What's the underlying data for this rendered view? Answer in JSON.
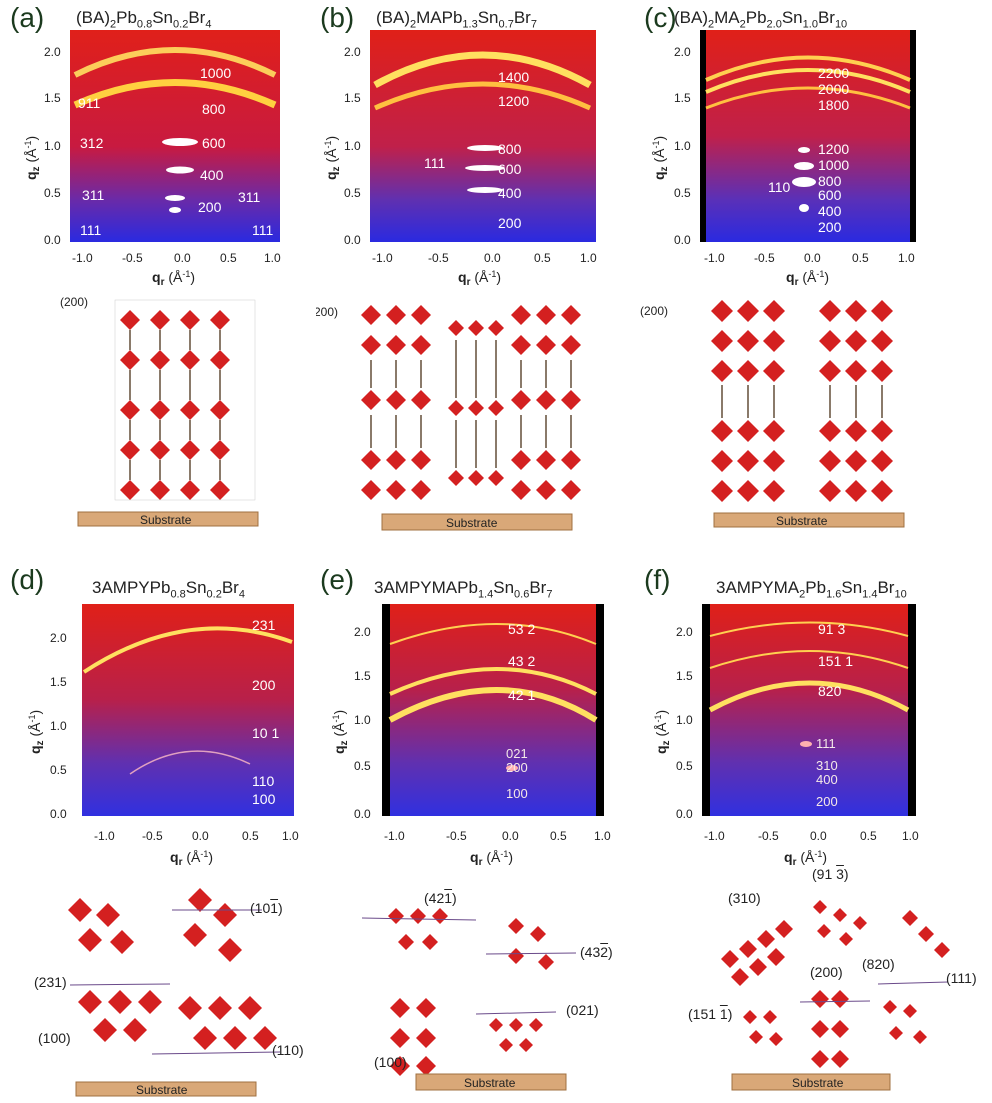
{
  "panels": [
    {
      "label": "(a)",
      "title_html": "(BA)<sub>2</sub>Pb<sub>0.8</sub>Sn<sub>0.2</sub>Br<sub>4</sub>",
      "xticks": [
        "-1.0",
        "-0.5",
        "0.0",
        "0.5",
        "1.0"
      ],
      "yticks": [
        "0.0",
        "0.5",
        "1.0",
        "1.5",
        "2.0"
      ],
      "peaks": [
        "1000",
        "911",
        "800",
        "312",
        "600",
        "400",
        "311",
        "200",
        "311",
        "111",
        "111"
      ],
      "plane": "(200)",
      "substrate": "Substrate"
    },
    {
      "label": "(b)",
      "title_html": "(BA)<sub>2</sub>MAPb<sub>1.3</sub>Sn<sub>0.7</sub>Br<sub>7</sub>",
      "xticks": [
        "-1.0",
        "-0.5",
        "0.0",
        "0.5",
        "1.0"
      ],
      "yticks": [
        "0.0",
        "0.5",
        "1.0",
        "1.5",
        "2.0"
      ],
      "peaks": [
        "1400",
        "1200",
        "800",
        "111",
        "600",
        "400",
        "200"
      ],
      "plane": "(200)",
      "substrate": "Substrate"
    },
    {
      "label": "(c)",
      "title_html": "(BA)<sub>2</sub>MA<sub>2</sub>Pb<sub>2.0</sub>Sn<sub>1.0</sub>Br<sub>10</sub>",
      "xticks": [
        "-1.0",
        "-0.5",
        "0.0",
        "0.5",
        "1.0"
      ],
      "yticks": [
        "0.0",
        "0.5",
        "1.0",
        "1.5",
        "2.0"
      ],
      "peaks": [
        "2200",
        "2000",
        "1800",
        "1200",
        "1000",
        "110",
        "800",
        "600",
        "400",
        "200"
      ],
      "plane": "(200)",
      "substrate": "Substrate"
    },
    {
      "label": "(d)",
      "title_html": "3AMPYPb<sub>0.8</sub>Sn<sub>0.2</sub>Br<sub>4</sub>",
      "xticks": [
        "-1.0",
        "-0.5",
        "0.0",
        "0.5",
        "1.0"
      ],
      "yticks": [
        "0.0",
        "0.5",
        "1.0",
        "1.5",
        "2.0"
      ],
      "peaks": [
        "231",
        "200",
        "10 1",
        "110",
        "100"
      ],
      "planes": [
        "(10 1)",
        "(231)",
        "(100)",
        "(110)"
      ],
      "substrate": "Substrate"
    },
    {
      "label": "(e)",
      "title_html": "3AMPYMAPb<sub>1.4</sub>Sn<sub>0.6</sub>Br<sub>7</sub>",
      "xticks": [
        "-1.0",
        "-0.5",
        "0.0",
        "0.5",
        "1.0"
      ],
      "yticks": [
        "0.0",
        "0.5",
        "1.0",
        "1.5",
        "2.0"
      ],
      "peaks": [
        "53 2",
        "43 2",
        "42 1",
        "021",
        "200",
        "100"
      ],
      "planes": [
        "(42 1)",
        "(43 2)",
        "(021)",
        "(100)"
      ],
      "substrate": "Substrate"
    },
    {
      "label": "(f)",
      "title_html": "3AMPYMA<sub>2</sub>Pb<sub>1.6</sub>Sn<sub>1.4</sub>Br<sub>10</sub>",
      "xticks": [
        "-1.0",
        "-0.5",
        "0.0",
        "0.5",
        "1.0"
      ],
      "yticks": [
        "0.0",
        "0.5",
        "1.0",
        "1.5",
        "2.0"
      ],
      "peaks": [
        "91 3",
        "151 1",
        "820",
        "111",
        "310",
        "400",
        "200"
      ],
      "planes": [
        "(310)",
        "(91 3)",
        "(200)",
        "(820)",
        "(111)",
        "(151 1)"
      ],
      "substrate": "Substrate"
    }
  ],
  "axes": {
    "xlabel": "q",
    "xsub": "r",
    "ylabel": "q",
    "ysub": "z",
    "unit": "(Å",
    "unitsup": "-1",
    "unitclose": ")"
  }
}
